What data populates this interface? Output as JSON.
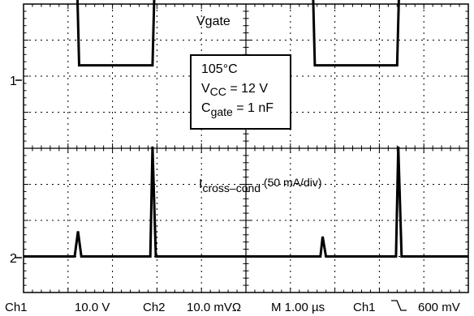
{
  "chart_data": {
    "type": "line",
    "x_unit": "µs",
    "series": [
      {
        "name": "Vgate",
        "channel": "1",
        "points": [
          [
            0,
            2.45
          ],
          [
            2.4,
            2.45
          ],
          [
            2.5,
            0
          ],
          [
            5.8,
            0
          ],
          [
            5.9,
            2.45
          ],
          [
            13.0,
            2.45
          ],
          [
            13.1,
            0
          ],
          [
            16.8,
            0
          ],
          [
            16.9,
            2.45
          ],
          [
            20,
            2.45
          ]
        ],
        "color": "#000000"
      },
      {
        "name": "Icross–cond (50 mA/div)",
        "channel": "2",
        "points": [
          [
            0,
            0
          ],
          [
            2.3,
            0
          ],
          [
            2.45,
            0.7
          ],
          [
            2.6,
            0
          ],
          [
            5.7,
            0
          ],
          [
            5.8,
            3.05
          ],
          [
            5.95,
            0
          ],
          [
            13.35,
            0
          ],
          [
            13.45,
            0.55
          ],
          [
            13.6,
            0
          ],
          [
            16.75,
            0
          ],
          [
            16.85,
            3.05
          ],
          [
            17.0,
            0
          ],
          [
            20,
            0
          ]
        ],
        "color": "#000000"
      }
    ],
    "channel_markers": [
      "1",
      "2"
    ],
    "annotation": {
      "temperature": "105°C",
      "vcc_label": "V",
      "vcc_sub": "CC",
      "vcc_value": " = 12 V",
      "cgate_label": "C",
      "cgate_sub": "gate",
      "cgate_value": " = 1 nF"
    },
    "labels": {
      "vgate": "Vgate",
      "icross_main": "I",
      "icross_sub": "cross–cond",
      "icross_scale": " (50 mA/div)"
    },
    "readout": {
      "ch1_name": "Ch1",
      "ch1_scale": "10.0 V",
      "ch2_name": "Ch2",
      "ch2_scale": "10.0 mVΩ",
      "timebase": "M 1.00 µs",
      "trigger_source": "Ch1",
      "trigger_slope_icon": "falling-edge-icon",
      "trigger_level": "600 mV"
    },
    "grid": {
      "divisions_x": 10,
      "divisions_y": 8,
      "style": "dotted"
    },
    "ylim_divisions": [
      0,
      8
    ],
    "xlim": [
      0,
      20
    ]
  }
}
